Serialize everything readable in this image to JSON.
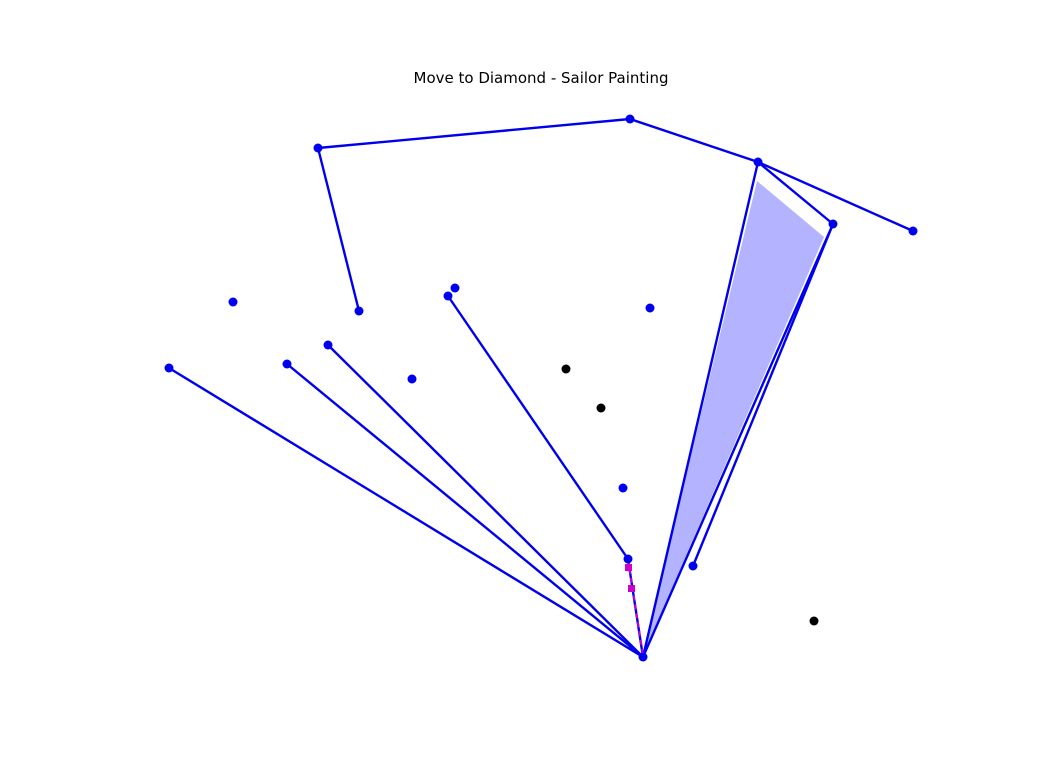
{
  "title": "Move to Diamond - Sailor Painting",
  "colors": {
    "edge": "#0000ee",
    "node": "#0000ee",
    "other_node": "#000000",
    "fill": "#b3b3ff",
    "marker": "#cc00cc"
  }
}
